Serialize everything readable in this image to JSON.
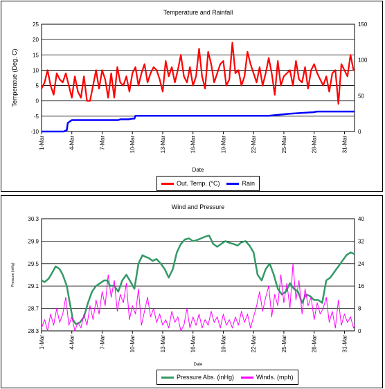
{
  "charts": [
    {
      "id": "temp",
      "title": "Temperature and Rainfall",
      "ylabel": "Temperatue (Deg. C)",
      "xlabel": "Date",
      "legend": [
        "Out. Temp. (°C)",
        "Rain"
      ]
    },
    {
      "id": "wind",
      "title": "Wind and Pressure",
      "ylabel": "Pressure (inHg)",
      "xlabel": "Date",
      "legend": [
        "Pressure Abs. (inHg)",
        "Winds. (mph)"
      ]
    }
  ],
  "colors": {
    "temp": "#ff0000",
    "rain": "#0000ff",
    "pressure": "#339966",
    "wind": "#ff00ff",
    "grid": "#000000"
  },
  "chart_data": [
    {
      "type": "line",
      "title": "Temperature and Rainfall",
      "xlabel": "Date",
      "ylabel": "Temperatue (Deg. C)",
      "x_ticks": [
        "1-Mar",
        "4-Mar",
        "7-Mar",
        "10-Mar",
        "13-Mar",
        "16-Mar",
        "19-Mar",
        "22-Mar",
        "25-Mar",
        "28-Mar",
        "31-Mar"
      ],
      "x_range": [
        1,
        32
      ],
      "y_left": {
        "range": [
          -10,
          25
        ],
        "ticks": [
          25,
          20,
          15,
          10,
          5,
          0,
          -5,
          -10
        ]
      },
      "y_right": {
        "range": [
          0,
          150
        ],
        "ticks": [
          150,
          100,
          50,
          0
        ]
      },
      "legend_position": "bottom",
      "grid": true,
      "series": [
        {
          "name": "Out. Temp. (°C)",
          "axis": "left",
          "x": [
            1,
            1.3,
            1.6,
            1.9,
            2.2,
            2.5,
            2.8,
            3.1,
            3.4,
            3.7,
            4.0,
            4.3,
            4.6,
            4.9,
            5.2,
            5.5,
            5.8,
            6.1,
            6.4,
            6.7,
            7.0,
            7.3,
            7.6,
            7.9,
            8.2,
            8.5,
            8.8,
            9.1,
            9.4,
            9.7,
            10.0,
            10.3,
            10.6,
            10.9,
            11.2,
            11.5,
            11.8,
            12.1,
            12.4,
            12.7,
            13.0,
            13.3,
            13.6,
            13.9,
            14.2,
            14.5,
            14.8,
            15.1,
            15.4,
            15.7,
            16.0,
            16.3,
            16.6,
            16.9,
            17.2,
            17.5,
            17.8,
            18.1,
            18.4,
            18.7,
            19.0,
            19.3,
            19.6,
            19.9,
            20.2,
            20.5,
            20.8,
            21.1,
            21.4,
            21.7,
            22.0,
            22.3,
            22.6,
            22.9,
            23.2,
            23.5,
            23.8,
            24.1,
            24.4,
            24.7,
            25.0,
            25.3,
            25.6,
            25.9,
            26.2,
            26.5,
            26.8,
            27.1,
            27.4,
            27.7,
            28.0,
            28.3,
            28.6,
            28.9,
            29.2,
            29.5,
            29.8,
            30.1,
            30.4,
            30.7,
            31.0,
            31.3,
            31.6,
            31.9,
            32.0
          ],
          "y": [
            4,
            6,
            10,
            5,
            2,
            9,
            7,
            6,
            9,
            5,
            1,
            8,
            3,
            1,
            8,
            0,
            0,
            5,
            10,
            4,
            10,
            7,
            1,
            9,
            1,
            11,
            6,
            5,
            8,
            3,
            9,
            11,
            5,
            9,
            12,
            6,
            9,
            11,
            10,
            7,
            3,
            13,
            8,
            11,
            6,
            10,
            15,
            8,
            6,
            11,
            5,
            8,
            17,
            8,
            4,
            16,
            12,
            6,
            9,
            12,
            13,
            5,
            7,
            19,
            9,
            10,
            5,
            8,
            16,
            12,
            9,
            6,
            11,
            5,
            9,
            14,
            9,
            2,
            13,
            5,
            8,
            9,
            10,
            5,
            13,
            7,
            6,
            11,
            4,
            10,
            12,
            9,
            7,
            5,
            8,
            3,
            9,
            10,
            -1,
            12,
            10,
            8,
            15,
            10,
            10
          ]
        },
        {
          "name": "Rain",
          "axis": "right",
          "x": [
            1,
            3.2,
            3.5,
            3.6,
            4.0,
            6.8,
            8.6,
            8.8,
            9.6,
            10.0,
            10.2,
            10.3,
            22.0,
            23.5,
            24.2,
            25.6,
            27.9,
            28.3,
            30.0,
            32.0
          ],
          "y": [
            0,
            0,
            2,
            12,
            16,
            16,
            16,
            17,
            17,
            18,
            18,
            22,
            22,
            22,
            23,
            25,
            27,
            28,
            28,
            28
          ]
        }
      ]
    },
    {
      "type": "line",
      "title": "Wind and Pressure",
      "xlabel": "Date",
      "ylabel": "Pressure (inHg)",
      "x_ticks": [
        "1-Mar",
        "4-Mar",
        "7-Mar",
        "10-Mar",
        "13-Mar",
        "16-Mar",
        "19-Mar",
        "22-Mar",
        "25-Mar",
        "28-Mar",
        "31-Mar"
      ],
      "x_range": [
        1,
        32
      ],
      "y_left": {
        "range": [
          28.3,
          30.3
        ],
        "ticks": [
          30.3,
          29.9,
          29.5,
          29.1,
          28.7,
          28.3
        ]
      },
      "y_right": {
        "range": [
          0,
          40
        ],
        "ticks": [
          40,
          32,
          24,
          16,
          8,
          0
        ]
      },
      "legend_position": "bottom",
      "grid": true,
      "series": [
        {
          "name": "Pressure Abs. (inHg)",
          "axis": "left",
          "x": [
            1,
            1.3,
            1.7,
            2.0,
            2.4,
            2.8,
            3.1,
            3.5,
            3.8,
            4.1,
            4.4,
            4.8,
            5.2,
            5.6,
            6.0,
            6.4,
            6.8,
            7.2,
            7.5,
            7.8,
            8.2,
            8.6,
            9.0,
            9.4,
            9.8,
            10.2,
            10.6,
            11.0,
            11.3,
            11.6,
            12.0,
            12.4,
            12.8,
            13.2,
            13.6,
            14.0,
            14.4,
            14.8,
            15.2,
            15.6,
            16.0,
            16.4,
            16.8,
            17.2,
            17.6,
            18.0,
            18.4,
            18.8,
            19.2,
            19.6,
            20.0,
            20.4,
            20.8,
            21.2,
            21.6,
            22.0,
            22.4,
            22.8,
            23.2,
            23.6,
            24.0,
            24.4,
            24.8,
            25.2,
            25.6,
            26.0,
            26.4,
            26.8,
            27.2,
            27.6,
            28.0,
            28.4,
            28.8,
            29.2,
            29.6,
            30.0,
            30.4,
            30.8,
            31.2,
            31.6,
            32.0
          ],
          "y": [
            29.2,
            29.17,
            29.23,
            29.32,
            29.45,
            29.4,
            29.3,
            29.1,
            28.8,
            28.5,
            28.42,
            28.45,
            28.55,
            28.8,
            29.0,
            29.1,
            29.15,
            29.2,
            29.2,
            29.1,
            29.1,
            29.0,
            29.2,
            29.3,
            29.18,
            29.05,
            29.5,
            29.65,
            29.62,
            29.6,
            29.55,
            29.58,
            29.5,
            29.4,
            29.25,
            29.4,
            29.7,
            29.85,
            29.93,
            29.95,
            29.9,
            29.92,
            29.95,
            29.98,
            30.0,
            29.85,
            29.8,
            29.85,
            29.9,
            29.87,
            29.85,
            29.82,
            29.88,
            29.9,
            29.82,
            29.7,
            29.3,
            29.2,
            29.4,
            29.5,
            29.3,
            29.05,
            28.95,
            29.0,
            29.15,
            29.05,
            29.0,
            28.8,
            28.95,
            28.92,
            28.85,
            28.85,
            28.8,
            29.2,
            29.25,
            29.35,
            29.45,
            29.55,
            29.65,
            29.7,
            29.67
          ]
        },
        {
          "name": "Winds. (mph)",
          "axis": "right",
          "x": [
            1,
            1.3,
            1.6,
            1.9,
            2.2,
            2.5,
            2.8,
            3.1,
            3.4,
            3.7,
            4.0,
            4.3,
            4.6,
            4.9,
            5.2,
            5.5,
            5.8,
            6.1,
            6.4,
            6.7,
            7.0,
            7.3,
            7.6,
            7.9,
            8.2,
            8.5,
            8.8,
            9.1,
            9.4,
            9.7,
            10.0,
            10.3,
            10.6,
            10.9,
            11.2,
            11.5,
            11.8,
            12.1,
            12.4,
            12.7,
            13.0,
            13.3,
            13.6,
            13.9,
            14.2,
            14.5,
            14.8,
            15.1,
            15.4,
            15.7,
            16.0,
            16.3,
            16.6,
            16.9,
            17.2,
            17.5,
            17.8,
            18.1,
            18.4,
            18.7,
            19.0,
            19.3,
            19.6,
            19.9,
            20.2,
            20.5,
            20.8,
            21.1,
            21.4,
            21.7,
            22.0,
            22.3,
            22.6,
            22.9,
            23.2,
            23.5,
            23.8,
            24.1,
            24.4,
            24.7,
            25.0,
            25.3,
            25.6,
            25.9,
            26.2,
            26.5,
            26.8,
            27.1,
            27.4,
            27.7,
            28.0,
            28.3,
            28.6,
            28.9,
            29.2,
            29.5,
            29.8,
            30.1,
            30.4,
            30.7,
            31.0,
            31.3,
            31.6,
            31.9,
            32.0
          ],
          "y": [
            1,
            4,
            0,
            6,
            2,
            8,
            3,
            6,
            12,
            2,
            5,
            0,
            3,
            1,
            6,
            2,
            9,
            4,
            11,
            6,
            14,
            9,
            20,
            12,
            18,
            7,
            13,
            10,
            17,
            4,
            9,
            6,
            15,
            2,
            7,
            12,
            5,
            8,
            3,
            6,
            2,
            4,
            1,
            7,
            3,
            5,
            0,
            2,
            8,
            1,
            5,
            2,
            6,
            1,
            4,
            2,
            7,
            3,
            5,
            1,
            6,
            2,
            4,
            1,
            5,
            2,
            7,
            3,
            6,
            1,
            5,
            9,
            14,
            7,
            12,
            16,
            5,
            13,
            9,
            20,
            10,
            17,
            8,
            24,
            11,
            18,
            6,
            15,
            9,
            12,
            4,
            10,
            6,
            8,
            12,
            3,
            7,
            1,
            11,
            2,
            6,
            3,
            5,
            1,
            2
          ]
        }
      ]
    }
  ]
}
